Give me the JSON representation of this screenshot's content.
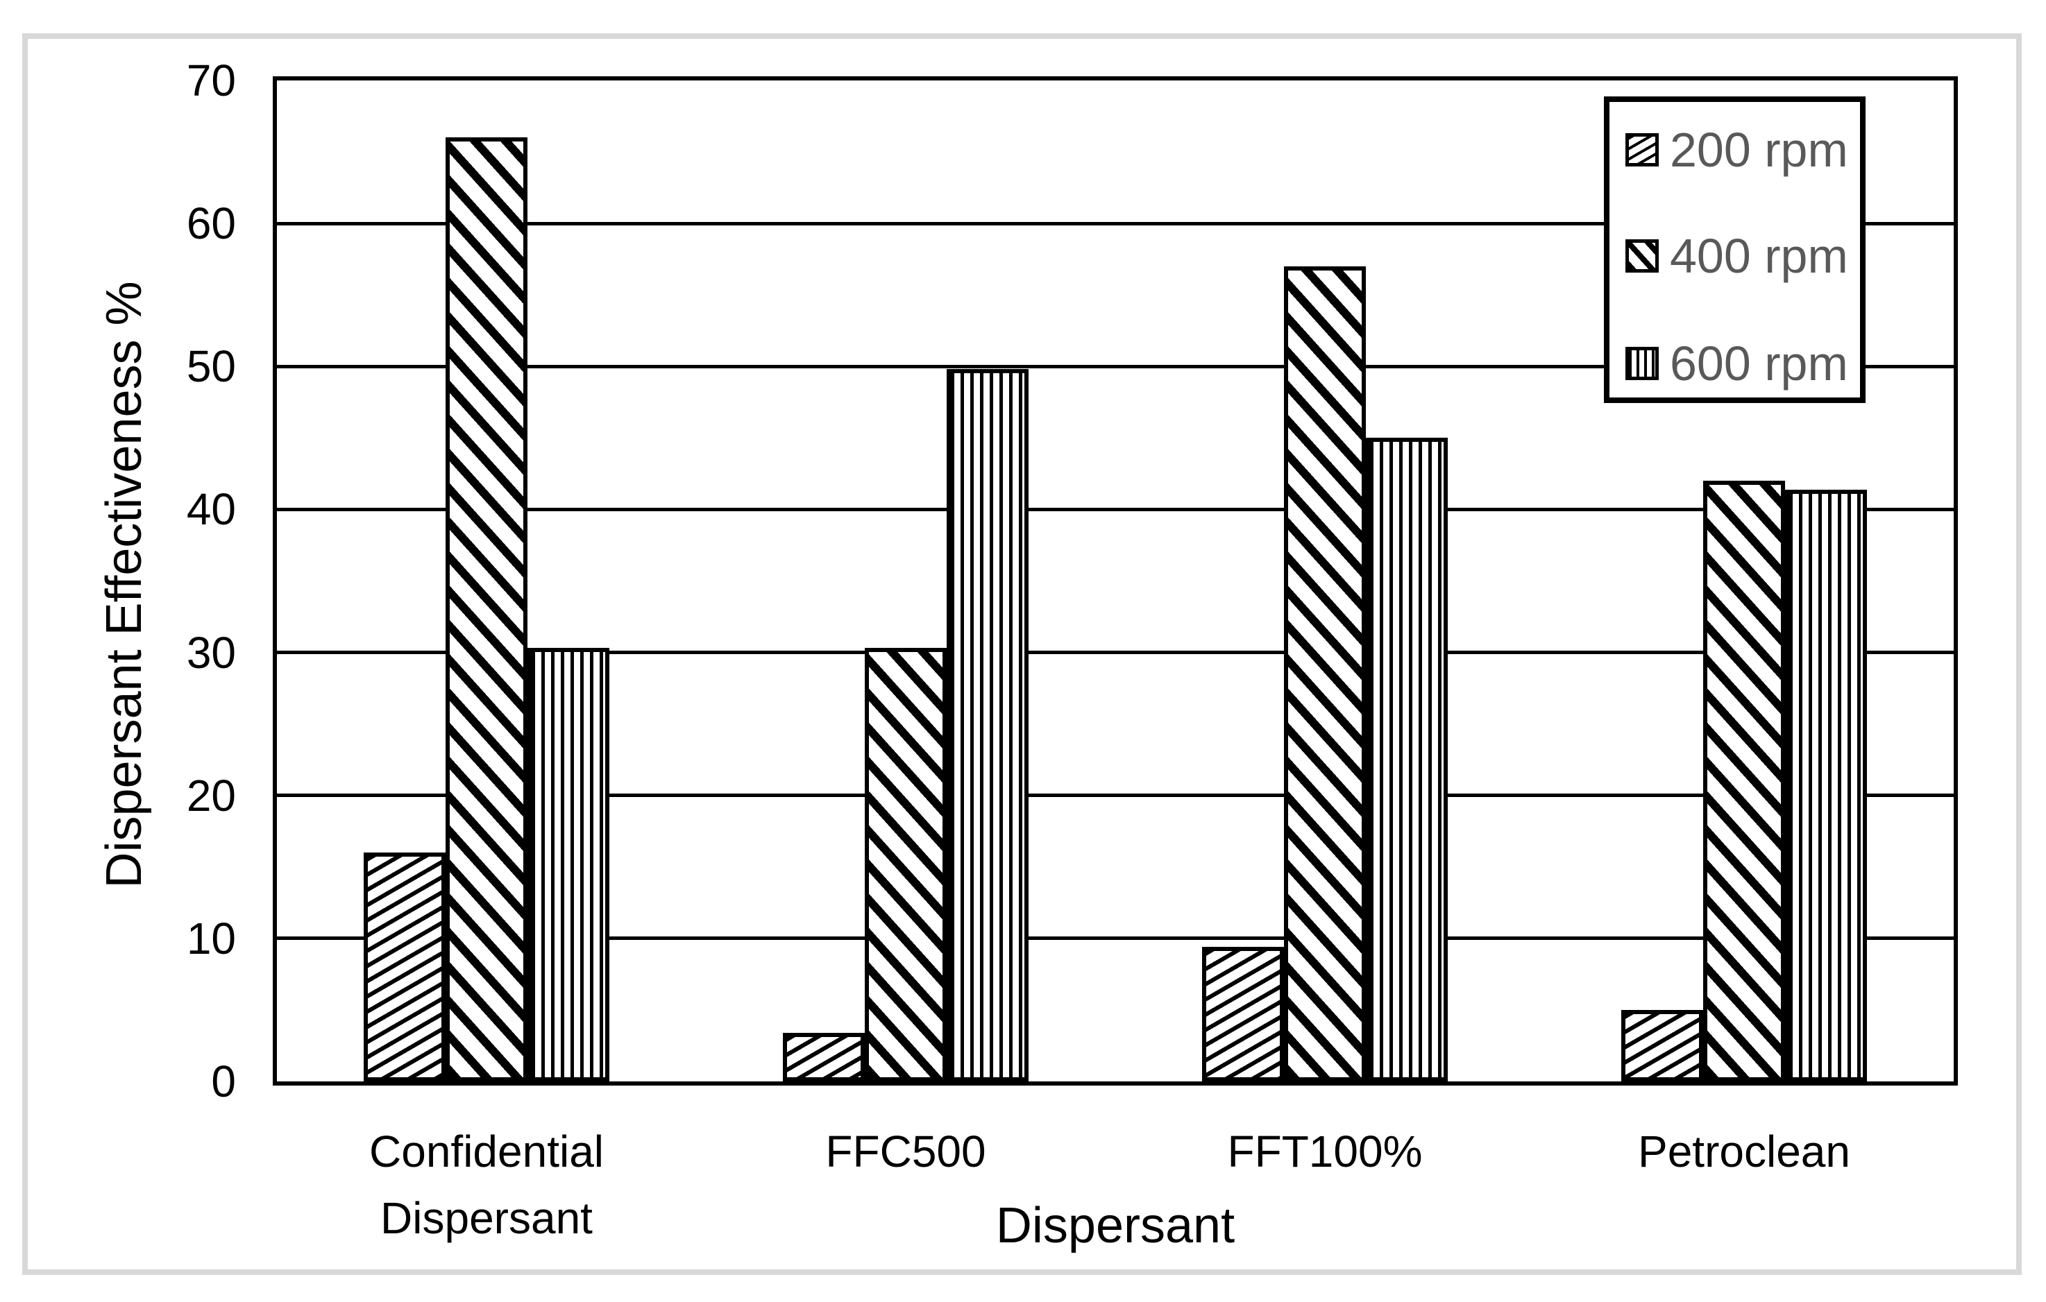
{
  "colors": {
    "axis": "#000000",
    "text": "#000000",
    "legend_text": "#595959",
    "frame": "#d8d8d8",
    "background": "#ffffff"
  },
  "chart_data": {
    "type": "bar",
    "title": "",
    "xlabel": "Dispersant",
    "ylabel": "Dispersant Effectiveness %",
    "categories": [
      "Confidential Dispersant",
      "FFC500",
      "FFT100%",
      "Petroclean"
    ],
    "series": [
      {
        "name": "200 rpm",
        "pattern": "diagonal-up-light",
        "values": [
          16,
          3.4,
          9.4,
          5
        ]
      },
      {
        "name": "400 rpm",
        "pattern": "diagonal-down-wide",
        "values": [
          66,
          30.3,
          57,
          42
        ]
      },
      {
        "name": "600 rpm",
        "pattern": "vertical-lines",
        "values": [
          30.3,
          49.8,
          45,
          41.4
        ]
      }
    ],
    "ylim": [
      0,
      70
    ],
    "yticks": [
      0,
      10,
      20,
      30,
      40,
      50,
      60,
      70
    ],
    "grid": "horizontal-major",
    "legend_position": "top-right-inside",
    "legend_labels": [
      "200 rpm",
      "400 rpm",
      "600 rpm"
    ]
  }
}
